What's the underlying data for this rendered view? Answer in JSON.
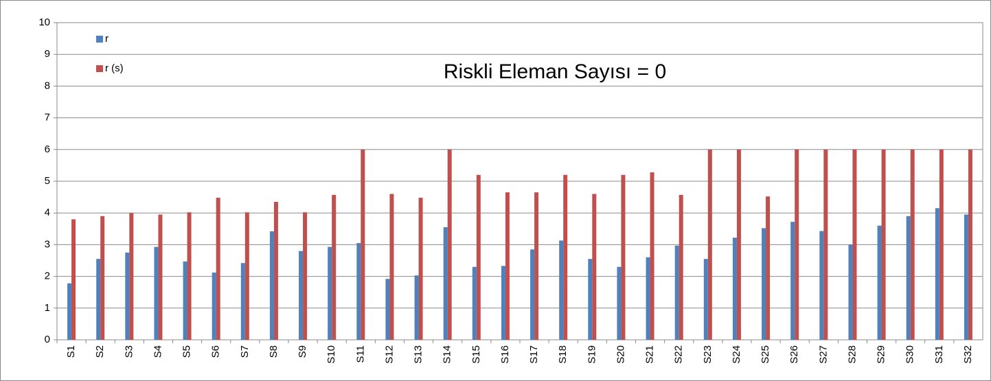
{
  "chart_data": {
    "type": "bar",
    "annotation": "Riskli Eleman Sayısı = 0",
    "categories": [
      "S1",
      "S2",
      "S3",
      "S4",
      "S5",
      "S6",
      "S7",
      "S8",
      "S9",
      "S10",
      "S11",
      "S12",
      "S13",
      "S14",
      "S15",
      "S16",
      "S17",
      "S18",
      "S19",
      "S20",
      "S21",
      "S22",
      "S23",
      "S24",
      "S25",
      "S26",
      "S27",
      "S28",
      "S29",
      "S30",
      "S31",
      "S32"
    ],
    "series": [
      {
        "name": "r",
        "color": "#4f81bd",
        "values": [
          1.78,
          2.55,
          2.75,
          2.93,
          2.47,
          2.12,
          2.42,
          3.42,
          2.8,
          2.93,
          3.05,
          1.92,
          2.03,
          3.55,
          2.3,
          2.33,
          2.85,
          3.13,
          2.55,
          2.3,
          2.6,
          2.97,
          2.55,
          3.22,
          3.52,
          3.72,
          3.43,
          3.0,
          3.6,
          3.9,
          4.15,
          3.95
        ]
      },
      {
        "name": "r (s)",
        "color": "#c0504d",
        "values": [
          3.8,
          3.9,
          4.0,
          3.95,
          4.02,
          4.48,
          4.02,
          4.35,
          4.02,
          4.57,
          6,
          4.6,
          4.48,
          6,
          5.2,
          4.65,
          4.65,
          5.2,
          4.6,
          5.2,
          5.28,
          4.57,
          6,
          6,
          4.52,
          6,
          6,
          6,
          6,
          6,
          6,
          6
        ]
      }
    ],
    "ylim": [
      0,
      10
    ],
    "yticks": [
      0,
      1,
      2,
      3,
      4,
      5,
      6,
      7,
      8,
      9,
      10
    ],
    "grid": true,
    "legend": "top-left"
  }
}
